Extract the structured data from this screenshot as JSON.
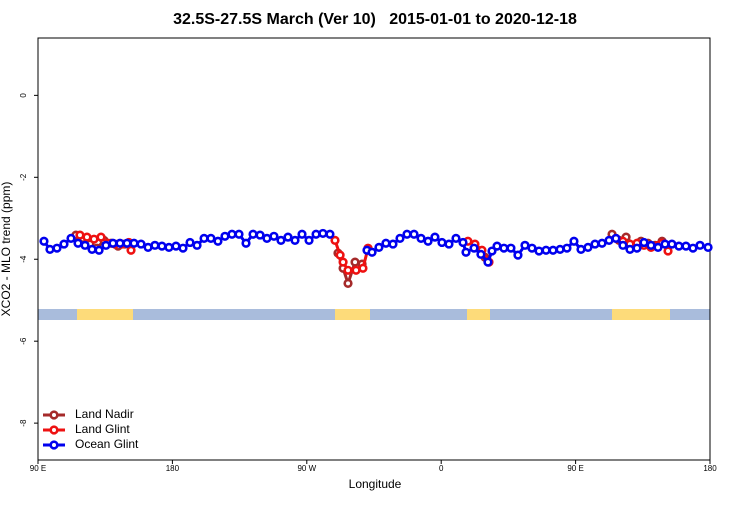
{
  "chart_data": {
    "type": "line",
    "title": "32.5S-27.5S March (Ver 10)   2015-01-01 to 2020-12-18",
    "x_label": "Longitude",
    "y_label": "XCO2 - MLO trend (ppm)",
    "xlim": [
      90,
      540
    ],
    "xticks": [
      {
        "value": 90,
        "label": "90 E"
      },
      180,
      {
        "value": 270,
        "label": "90 W"
      },
      {
        "value": 360,
        "label": "0"
      },
      {
        "value": 450,
        "label": "90 E"
      },
      {
        "value": 540,
        "label": "180"
      }
    ],
    "ylim": [
      -8.9,
      1.4
    ],
    "yticks": [
      0,
      -2,
      -4,
      -6,
      -8
    ],
    "legend": "bottom-left",
    "series": [
      {
        "name": "Land Nadir",
        "color": "#a52a2a",
        "x": [
          115.4,
          120.1,
          124.8,
          129.5,
          134.2,
          138.9,
          143.6,
          148.3,
          null,
          290.9,
          294.3,
          297.6,
          302.3,
          307.0,
          null,
          389.3,
          null,
          474.4,
          479.1,
          483.8,
          489.1,
          493.8,
          498.5,
          503.2,
          507.9
        ],
        "values": [
          -3.41,
          -3.49,
          -3.63,
          -3.73,
          -3.54,
          -3.61,
          -3.68,
          -3.63,
          null,
          -3.85,
          -4.22,
          -4.59,
          -4.07,
          -4.12,
          null,
          -3.95,
          null,
          -3.39,
          -3.54,
          -3.46,
          -3.66,
          -3.56,
          -3.61,
          -3.66,
          -3.56
        ]
      },
      {
        "name": "Land Glint",
        "color": "#ee1111",
        "x": [
          118.1,
          122.8,
          127.5,
          132.2,
          136.9,
          141.6,
          146.3,
          150.9,
          152.3,
          null,
          288.9,
          292.3,
          294.3,
          297.6,
          303.0,
          307.6,
          311.0,
          null,
          377.9,
          382.6,
          387.3,
          392.0,
          null,
          477.0,
          481.7,
          486.4,
          491.1,
          495.8,
          500.5,
          505.2,
          507.9,
          511.9
        ],
        "values": [
          -3.41,
          -3.46,
          -3.51,
          -3.46,
          -3.61,
          -3.63,
          -3.63,
          -3.59,
          -3.78,
          null,
          -3.54,
          -3.9,
          -4.07,
          -4.27,
          -4.27,
          -4.22,
          -3.73,
          null,
          -3.56,
          -3.63,
          -3.78,
          -4.07,
          null,
          -3.49,
          -3.56,
          -3.63,
          -3.61,
          -3.66,
          -3.71,
          -3.66,
          -3.61,
          -3.8
        ]
      },
      {
        "name": "Ocean Glint",
        "color": "#0000ee",
        "x": [
          94.0,
          98.0,
          102.7,
          107.4,
          112.1,
          116.8,
          121.5,
          126.2,
          130.9,
          135.5,
          140.2,
          144.9,
          149.6,
          154.3,
          159.0,
          163.7,
          168.3,
          173.0,
          177.7,
          182.4,
          187.1,
          191.8,
          196.5,
          201.2,
          205.8,
          210.5,
          215.2,
          219.9,
          224.6,
          229.3,
          234.0,
          238.7,
          243.3,
          248.0,
          252.7,
          257.4,
          262.1,
          266.8,
          271.5,
          276.2,
          280.8,
          285.5,
          null,
          310.3,
          313.7,
          318.3,
          323.0,
          327.7,
          332.4,
          337.1,
          341.8,
          346.5,
          351.2,
          355.8,
          360.5,
          365.2,
          369.9,
          374.6,
          376.6,
          382.0,
          386.6,
          391.3,
          394.0,
          397.4,
          402.0,
          406.7,
          411.4,
          416.1,
          420.8,
          425.5,
          430.2,
          434.9,
          439.6,
          444.2,
          448.9,
          453.6,
          458.3,
          463.0,
          467.7,
          472.4,
          477.0,
          481.7,
          486.4,
          491.1,
          495.8,
          500.5,
          505.2,
          509.9,
          514.5,
          519.2,
          523.9,
          528.6,
          533.3,
          538.7
        ],
        "values": [
          -3.56,
          -3.76,
          -3.73,
          -3.63,
          -3.49,
          -3.61,
          -3.66,
          -3.76,
          -3.78,
          -3.66,
          -3.61,
          -3.61,
          -3.61,
          -3.61,
          -3.63,
          -3.71,
          -3.66,
          -3.68,
          -3.71,
          -3.68,
          -3.73,
          -3.59,
          -3.66,
          -3.49,
          -3.49,
          -3.56,
          -3.44,
          -3.39,
          -3.39,
          -3.61,
          -3.39,
          -3.41,
          -3.49,
          -3.44,
          -3.54,
          -3.46,
          -3.54,
          -3.39,
          -3.54,
          -3.39,
          -3.37,
          -3.39,
          null,
          -3.78,
          -3.83,
          -3.71,
          -3.61,
          -3.63,
          -3.49,
          -3.39,
          -3.39,
          -3.49,
          -3.56,
          -3.46,
          -3.59,
          -3.63,
          -3.49,
          -3.59,
          -3.83,
          -3.73,
          -3.88,
          -4.07,
          -3.8,
          -3.68,
          -3.73,
          -3.73,
          -3.9,
          -3.66,
          -3.73,
          -3.8,
          -3.78,
          -3.78,
          -3.76,
          -3.73,
          -3.56,
          -3.76,
          -3.71,
          -3.63,
          -3.61,
          -3.54,
          -3.49,
          -3.66,
          -3.76,
          -3.73,
          -3.59,
          -3.66,
          -3.71,
          -3.63,
          -3.63,
          -3.68,
          -3.68,
          -3.73,
          -3.66,
          -3.71
        ]
      }
    ]
  }
}
